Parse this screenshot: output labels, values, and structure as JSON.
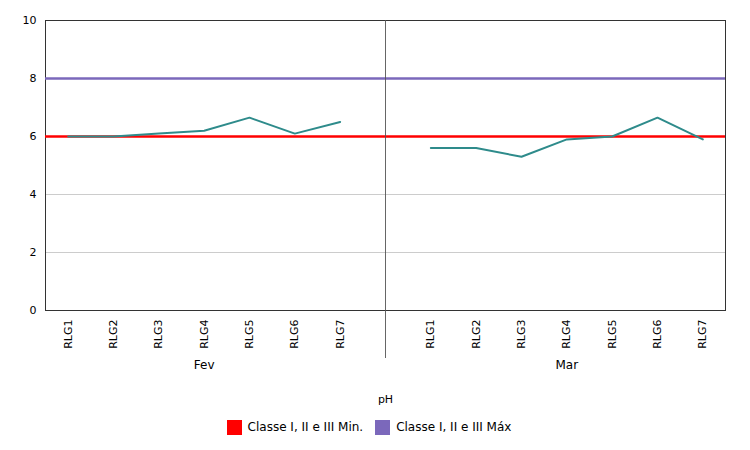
{
  "chart_data": {
    "type": "line",
    "xlabel": "pH",
    "categories": [
      "RLG1",
      "RLG2",
      "RLG3",
      "RLG4",
      "RLG5",
      "RLG6",
      "RLG7"
    ],
    "series": [
      {
        "name": "Fev",
        "color": "#2E8B8B",
        "values": [
          6.0,
          6.0,
          6.1,
          6.2,
          6.65,
          6.1,
          6.5
        ]
      },
      {
        "name": "Mar",
        "color": "#2E8B8B",
        "values": [
          5.6,
          5.6,
          5.3,
          5.9,
          6.0,
          6.65,
          5.9
        ]
      }
    ],
    "reference_lines": [
      {
        "name": "Classe I, II e III Min.",
        "value": 6.0,
        "color": "#FF0000"
      },
      {
        "name": "Classe I, II e III Máx",
        "value": 8.0,
        "color": "#7B68BB"
      }
    ],
    "ylim": [
      0,
      10
    ],
    "yticks": [
      0,
      2,
      4,
      6,
      8,
      10
    ],
    "grid": true,
    "legend": "bottom"
  }
}
